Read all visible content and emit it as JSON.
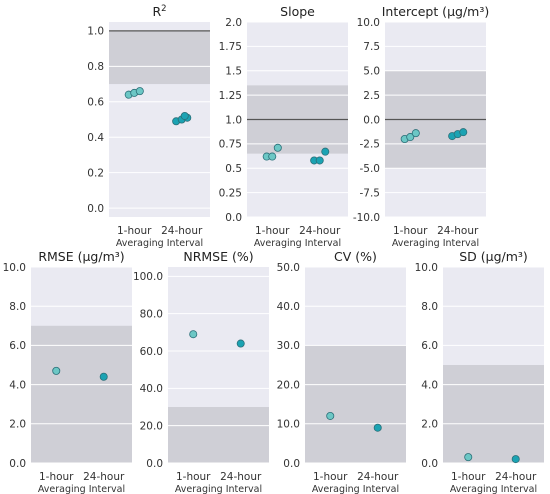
{
  "colors": {
    "panel_bg": "#eaeaf2",
    "target_band": "#cfcfd6",
    "grid": "#ffffff",
    "ref_line": "#555555",
    "point_1h": "#6cc7c5",
    "point_24h": "#1ba3b3",
    "point_edge": "#2a6f78"
  },
  "chart_data": [
    {
      "type": "scatter",
      "title": "R",
      "title_sup": "2",
      "categories": [
        "1-hour",
        "24-hour"
      ],
      "xlabel": "Averaging Interval",
      "ylim": [
        -0.05,
        1.05
      ],
      "yticks": [
        "0.0",
        "0.2",
        "0.4",
        "0.6",
        "0.8",
        "1.0"
      ],
      "target_band": [
        0.7,
        1.0
      ],
      "ref_line": 1.0,
      "series": [
        {
          "values": [
            [
              0.64,
              0.65,
              0.66
            ],
            [
              0.49,
              0.5,
              0.51,
              0.52
            ]
          ]
        }
      ]
    },
    {
      "type": "scatter",
      "title": "Slope",
      "categories": [
        "1-hour",
        "24-hour"
      ],
      "xlabel": "Averaging Interval",
      "ylim": [
        0.0,
        2.0
      ],
      "yticks": [
        "0.0",
        "0.25",
        "0.5",
        "0.75",
        "1.0",
        "1.25",
        "1.5",
        "1.75",
        "2.0"
      ],
      "target_band": [
        0.65,
        1.35
      ],
      "ref_line": 1.0,
      "series": [
        {
          "values": [
            [
              0.62,
              0.62,
              0.71
            ],
            [
              0.58,
              0.58,
              0.67
            ]
          ]
        }
      ]
    },
    {
      "type": "scatter",
      "title": "Intercept (μg/m³)",
      "categories": [
        "1-hour",
        "24-hour"
      ],
      "xlabel": "Averaging Interval",
      "ylim": [
        -10.0,
        10.0
      ],
      "yticks": [
        "-10.0",
        "-7.5",
        "-5.0",
        "-2.5",
        "0.0",
        "2.5",
        "5.0",
        "7.5",
        "10.0"
      ],
      "target_band": [
        -5.0,
        5.0
      ],
      "ref_line": 0.0,
      "series": [
        {
          "values": [
            [
              -2.0,
              -1.8,
              -1.4
            ],
            [
              -1.7,
              -1.5,
              -1.3
            ]
          ]
        }
      ]
    },
    {
      "type": "scatter",
      "title": "RMSE (μg/m³)",
      "categories": [
        "1-hour",
        "24-hour"
      ],
      "xlabel": "Averaging Interval",
      "ylim": [
        0.0,
        10.0
      ],
      "yticks": [
        "0.0",
        "2.0",
        "4.0",
        "6.0",
        "8.0",
        "10.0"
      ],
      "target_band": [
        0.0,
        7.0
      ],
      "series": [
        {
          "values": [
            [
              4.7
            ],
            [
              4.4
            ]
          ]
        }
      ]
    },
    {
      "type": "scatter",
      "title": "NRMSE (%)",
      "categories": [
        "1-hour",
        "24-hour"
      ],
      "xlabel": "Averaging Interval",
      "ylim": [
        0.0,
        105.0
      ],
      "yticks": [
        "0.0",
        "20.0",
        "40.0",
        "60.0",
        "80.0",
        "100.0"
      ],
      "target_band": [
        0.0,
        30.0
      ],
      "series": [
        {
          "values": [
            [
              69.0
            ],
            [
              64.0
            ]
          ]
        }
      ]
    },
    {
      "type": "scatter",
      "title": "CV (%)",
      "categories": [
        "1-hour",
        "24-hour"
      ],
      "xlabel": "Averaging Interval",
      "ylim": [
        0.0,
        50.0
      ],
      "yticks": [
        "0.0",
        "10.0",
        "20.0",
        "30.0",
        "40.0",
        "50.0"
      ],
      "target_band": [
        0.0,
        30.0
      ],
      "series": [
        {
          "values": [
            [
              12.0
            ],
            [
              9.0
            ]
          ]
        }
      ]
    },
    {
      "type": "scatter",
      "title": "SD (μg/m³)",
      "categories": [
        "1-hour",
        "24-hour"
      ],
      "xlabel": "Averaging Interval",
      "ylim": [
        0.0,
        10.0
      ],
      "yticks": [
        "0.0",
        "2.0",
        "4.0",
        "6.0",
        "8.0",
        "10.0"
      ],
      "target_band": [
        0.0,
        5.0
      ],
      "series": [
        {
          "values": [
            [
              0.3
            ],
            [
              0.2
            ]
          ]
        }
      ]
    }
  ]
}
